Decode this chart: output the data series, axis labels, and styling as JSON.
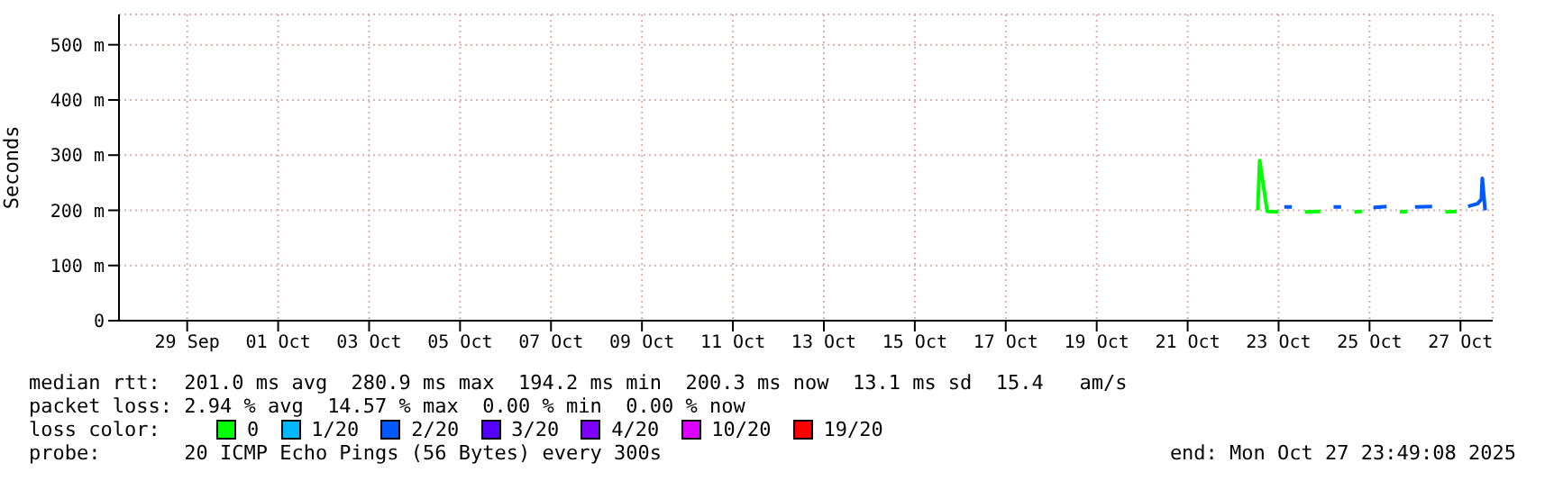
{
  "chart_data": {
    "type": "line",
    "ylabel": "Seconds",
    "legend_title": "loss color:",
    "legend": "bottom",
    "grid": true,
    "marker": "none",
    "line_style": "solid",
    "x": [
      "2025-10-22T13:00",
      "2025-10-22T14:00",
      "2025-10-22T18:00",
      "2025-10-23T00:00",
      "2025-10-23T03:00",
      "2025-10-23T07:00",
      "2025-10-23T14:00",
      "2025-10-23T22:00",
      "2025-10-24T05:00",
      "2025-10-24T09:00",
      "2025-10-24T16:00",
      "2025-10-24T20:00",
      "2025-10-25T02:00",
      "2025-10-25T09:00",
      "2025-10-25T16:00",
      "2025-10-25T20:00",
      "2025-10-26T00:00",
      "2025-10-26T09:00",
      "2025-10-26T16:00",
      "2025-10-26T22:00",
      "2025-10-27T04:00",
      "2025-10-27T09:00",
      "2025-10-27T11:00",
      "2025-10-27T11:30",
      "2025-10-27T13:00"
    ],
    "series": [
      {
        "name": "0",
        "color": "#00ff00",
        "values": [
          200,
          290,
          198,
          197,
          null,
          null,
          197,
          198,
          null,
          null,
          197,
          198,
          null,
          null,
          197,
          198,
          null,
          null,
          197,
          198,
          null,
          null,
          null,
          null,
          null
        ]
      },
      {
        "name": "1/20",
        "color": "#00b8ff",
        "values": [
          null,
          null,
          null,
          null,
          null,
          null,
          null,
          null,
          null,
          null,
          null,
          null,
          null,
          null,
          null,
          null,
          null,
          null,
          null,
          null,
          null,
          null,
          null,
          null,
          null
        ]
      },
      {
        "name": "2/20",
        "color": "#0059ff",
        "values": [
          null,
          null,
          null,
          null,
          206,
          206,
          null,
          null,
          206,
          206,
          null,
          null,
          205,
          207,
          null,
          null,
          206,
          207,
          null,
          null,
          207,
          212,
          220,
          258,
          200
        ]
      },
      {
        "name": "3/20",
        "color": "#5500ff",
        "values": [
          null,
          null,
          null,
          null,
          null,
          null,
          null,
          null,
          null,
          null,
          null,
          null,
          null,
          null,
          null,
          null,
          null,
          null,
          null,
          null,
          null,
          null,
          null,
          null,
          null
        ]
      },
      {
        "name": "4/20",
        "color": "#7e00ff",
        "values": [
          null,
          null,
          null,
          null,
          null,
          null,
          null,
          null,
          null,
          null,
          null,
          null,
          null,
          null,
          null,
          null,
          null,
          null,
          null,
          null,
          null,
          null,
          null,
          null,
          null
        ]
      },
      {
        "name": "10/20",
        "color": "#dd00ff",
        "values": [
          null,
          null,
          null,
          null,
          null,
          null,
          null,
          null,
          null,
          null,
          null,
          null,
          null,
          null,
          null,
          null,
          null,
          null,
          null,
          null,
          null,
          null,
          null,
          null,
          null
        ]
      },
      {
        "name": "19/20",
        "color": "#ff0000",
        "values": [
          null,
          null,
          null,
          null,
          null,
          null,
          null,
          null,
          null,
          null,
          null,
          null,
          null,
          null,
          null,
          null,
          null,
          null,
          null,
          null,
          null,
          null,
          null,
          null,
          null
        ]
      }
    ],
    "xlim": [
      "2025-09-27T12:00",
      "2025-10-27T17:00"
    ],
    "xticks": [
      {
        "value": "2025-09-29",
        "label": "29 Sep"
      },
      {
        "value": "2025-10-01",
        "label": "01 Oct"
      },
      {
        "value": "2025-10-03",
        "label": "03 Oct"
      },
      {
        "value": "2025-10-05",
        "label": "05 Oct"
      },
      {
        "value": "2025-10-07",
        "label": "07 Oct"
      },
      {
        "value": "2025-10-09",
        "label": "09 Oct"
      },
      {
        "value": "2025-10-11",
        "label": "11 Oct"
      },
      {
        "value": "2025-10-13",
        "label": "13 Oct"
      },
      {
        "value": "2025-10-15",
        "label": "15 Oct"
      },
      {
        "value": "2025-10-17",
        "label": "17 Oct"
      },
      {
        "value": "2025-10-19",
        "label": "19 Oct"
      },
      {
        "value": "2025-10-21",
        "label": "21 Oct"
      },
      {
        "value": "2025-10-23",
        "label": "23 Oct"
      },
      {
        "value": "2025-10-25",
        "label": "25 Oct"
      },
      {
        "value": "2025-10-27",
        "label": "27 Oct"
      }
    ],
    "ylim": [
      0,
      555
    ],
    "yticks": [
      0,
      {
        "value": 100,
        "label": "100 m"
      },
      {
        "value": 200,
        "label": "200 m"
      },
      {
        "value": 300,
        "label": "300 m"
      },
      {
        "value": 400,
        "label": "400 m"
      },
      {
        "value": 500,
        "label": "500 m"
      }
    ],
    "annotations": [
      "median rtt:  201.0 ms avg  280.9 ms max  194.2 ms min  200.3 ms now  13.1 ms sd  15.4   am/s",
      "packet loss: 2.94 % avg  14.57 % max  0.00 % min  0.00 % now",
      "probe:       20 ICMP Echo Pings (56 Bytes) every 300s",
      "end: Mon Oct 27 23:49:08 2025"
    ]
  }
}
